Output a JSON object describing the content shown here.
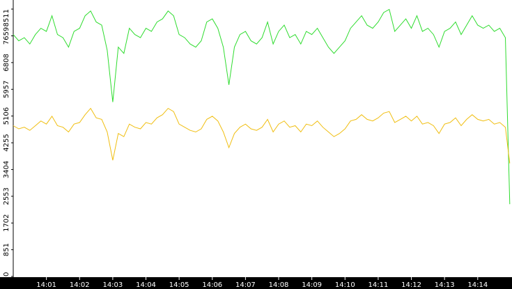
{
  "chart_data": {
    "type": "line",
    "x": [
      0,
      10,
      20,
      30,
      40,
      50,
      60,
      70,
      80,
      90,
      100,
      110,
      120,
      130,
      140,
      150,
      160,
      170,
      180,
      190,
      200,
      210,
      220,
      230,
      240,
      250,
      260,
      270,
      280,
      290,
      300,
      310,
      320,
      330,
      340,
      350,
      360,
      370,
      380,
      390,
      400,
      410,
      420,
      430,
      440,
      450,
      460,
      470,
      480,
      490,
      500,
      510,
      520,
      530,
      540,
      550,
      560,
      570,
      580,
      590,
      600,
      610,
      620,
      630,
      640,
      650,
      660,
      670,
      680,
      690,
      700,
      710,
      720,
      730,
      740,
      750,
      760,
      770,
      780,
      790,
      800,
      810,
      820,
      830,
      840,
      850,
      860,
      870,
      880,
      890,
      898
    ],
    "series": [
      {
        "color": "#2edc2e",
        "values": [
          7700,
          7500,
          7600,
          7400,
          7700,
          7900,
          7800,
          8300,
          7700,
          7600,
          7300,
          7800,
          7900,
          8300,
          8450,
          8100,
          8000,
          7200,
          5550,
          7300,
          7100,
          7900,
          7700,
          7600,
          7900,
          7800,
          8100,
          8200,
          8450,
          8300,
          7700,
          7600,
          7400,
          7300,
          7500,
          8100,
          8200,
          7900,
          7300,
          6100,
          7300,
          7700,
          7800,
          7500,
          7400,
          7600,
          8100,
          7400,
          7800,
          8000,
          7600,
          7700,
          7400,
          7800,
          7700,
          7900,
          7600,
          7300,
          7100,
          7300,
          7500,
          7900,
          8100,
          8300,
          8000,
          7900,
          8100,
          8400,
          8500,
          7800,
          8000,
          8200,
          7900,
          8300,
          7800,
          7900,
          7700,
          7300,
          7800,
          7900,
          8100,
          7700,
          8000,
          8300,
          8000,
          7900,
          8000,
          7800,
          7900,
          7600,
          2300
        ]
      },
      {
        "color": "#f0be10",
        "values": [
          4800,
          4700,
          4750,
          4650,
          4800,
          4950,
          4850,
          5100,
          4800,
          4750,
          4600,
          4850,
          4900,
          5150,
          5350,
          5050,
          5000,
          4600,
          3700,
          4550,
          4450,
          4850,
          4750,
          4700,
          4900,
          4850,
          5050,
          5150,
          5350,
          5250,
          4850,
          4750,
          4650,
          4600,
          4700,
          5000,
          5100,
          4950,
          4600,
          4100,
          4550,
          4750,
          4850,
          4700,
          4650,
          4750,
          5000,
          4600,
          4850,
          4950,
          4750,
          4800,
          4600,
          4850,
          4800,
          4950,
          4750,
          4600,
          4450,
          4550,
          4700,
          4950,
          5000,
          5150,
          5000,
          4950,
          5050,
          5200,
          5250,
          4900,
          5000,
          5100,
          4950,
          5100,
          4850,
          4900,
          4800,
          4550,
          4850,
          4900,
          5050,
          4800,
          5000,
          5150,
          5000,
          4950,
          5000,
          4850,
          4900,
          4750,
          3600
        ]
      }
    ],
    "xlim": [
      0,
      902
    ],
    "xticks": [
      {
        "value": 60,
        "label": "14:01"
      },
      {
        "value": 120,
        "label": "14:02"
      },
      {
        "value": 180,
        "label": "14:03"
      },
      {
        "value": 240,
        "label": "14:04"
      },
      {
        "value": 300,
        "label": "14:05"
      },
      {
        "value": 360,
        "label": "14:06"
      },
      {
        "value": 420,
        "label": "14:07"
      },
      {
        "value": 480,
        "label": "14:08"
      },
      {
        "value": 540,
        "label": "14:09"
      },
      {
        "value": 600,
        "label": "14:10"
      },
      {
        "value": 660,
        "label": "14:11"
      },
      {
        "value": 720,
        "label": "14:12"
      },
      {
        "value": 780,
        "label": "14:13"
      },
      {
        "value": 840,
        "label": "14:14"
      }
    ],
    "ylim": [
      0,
      8800
    ],
    "yticks": [
      0,
      851,
      1702,
      2553,
      3404,
      4255,
      5106,
      5957,
      6808,
      7659,
      8511
    ],
    "grid": false
  }
}
